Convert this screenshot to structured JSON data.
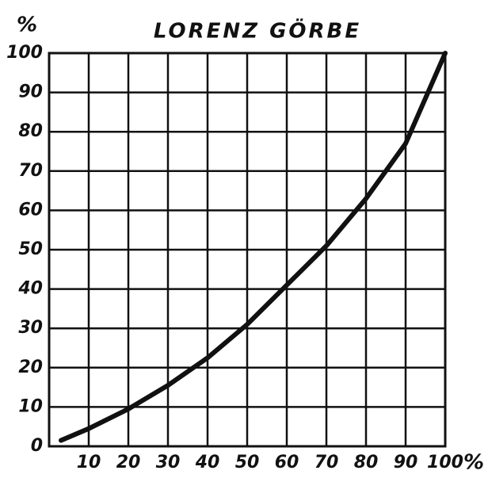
{
  "chart_data": {
    "type": "line",
    "title": "LORENZ GÖRBE",
    "y_label": "%",
    "x_label": "%",
    "x": [
      3,
      10,
      20,
      30,
      40,
      50,
      60,
      70,
      80,
      90,
      100
    ],
    "series": [
      {
        "color": "#111111",
        "values": [
          1.5,
          4.5,
          9.5,
          15.5,
          22.5,
          31,
          41,
          51,
          63,
          77,
          100
        ]
      }
    ],
    "xlim": [
      0,
      100
    ],
    "ylim": [
      0,
      100
    ],
    "xticks": [
      10,
      20,
      30,
      40,
      50,
      60,
      70,
      80,
      90,
      100
    ],
    "yticks": [
      0,
      10,
      20,
      30,
      40,
      50,
      60,
      70,
      80,
      90,
      100
    ],
    "grid": true
  }
}
